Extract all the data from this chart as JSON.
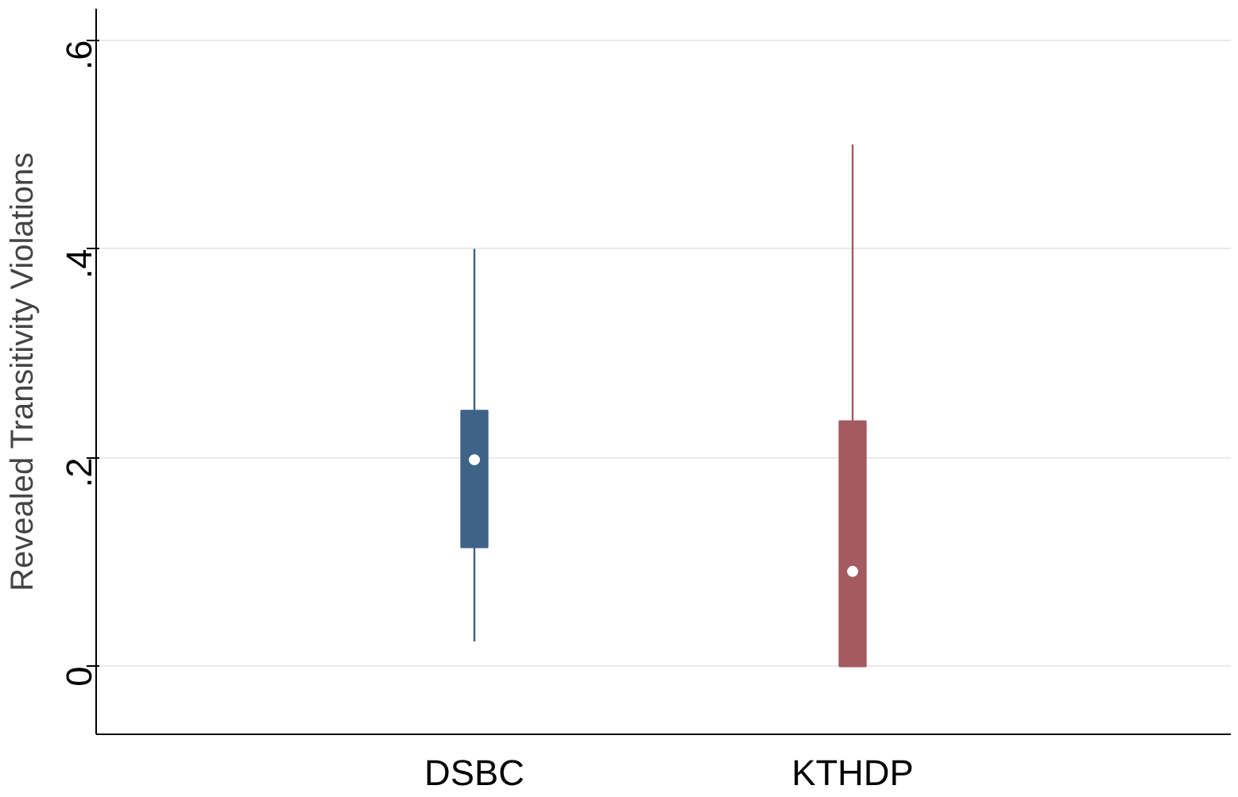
{
  "chart_data": {
    "type": "box",
    "ylabel": "Revealed Transitivity Violations",
    "categories": [
      "DSBC",
      "KTHDP"
    ],
    "boxes": [
      {
        "low": 0.024,
        "q1": 0.114,
        "median": 0.198,
        "q3": 0.245,
        "high": 0.4
      },
      {
        "low": 0,
        "q1": 0,
        "median": 0.091,
        "q3": 0.235,
        "high": 0.5
      }
    ],
    "colors": [
      "#3e6387",
      "#a55a62"
    ],
    "ylim": [
      -0.065,
      0.63
    ],
    "yticks": [
      0,
      {
        "value": 0.2,
        "label": ".2"
      },
      {
        "value": 0.4,
        "label": ".4"
      },
      {
        "value": 0.6,
        "label": ".6"
      }
    ],
    "grid": "y"
  }
}
